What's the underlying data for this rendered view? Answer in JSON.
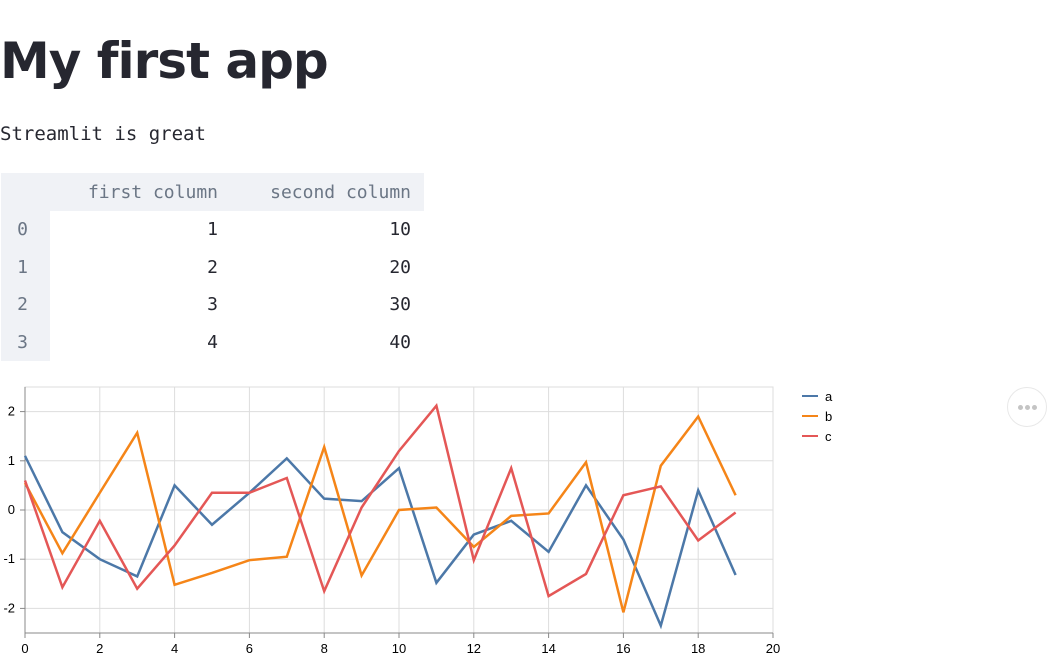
{
  "page": {
    "title": "My first app",
    "subtitle": "Streamlit is great"
  },
  "table": {
    "columns": [
      "first column",
      "second column"
    ],
    "rows": [
      {
        "index": "0",
        "first": "1",
        "second": "10"
      },
      {
        "index": "1",
        "first": "2",
        "second": "20"
      },
      {
        "index": "2",
        "first": "3",
        "second": "30"
      },
      {
        "index": "3",
        "first": "4",
        "second": "40"
      }
    ]
  },
  "chart_data": {
    "type": "line",
    "x": [
      0,
      1,
      2,
      3,
      4,
      5,
      6,
      7,
      8,
      9,
      10,
      11,
      12,
      13,
      14,
      15,
      16,
      17,
      18,
      19
    ],
    "series": [
      {
        "name": "a",
        "color": "#4c78a8",
        "values": [
          1.1,
          -0.45,
          -1.0,
          -1.35,
          0.5,
          -0.3,
          0.35,
          1.05,
          0.23,
          0.18,
          0.85,
          -1.48,
          -0.5,
          -0.22,
          -0.85,
          0.5,
          -0.6,
          -2.35,
          0.4,
          -1.32
        ]
      },
      {
        "name": "b",
        "color": "#f58518",
        "values": [
          0.55,
          -0.88,
          0.35,
          1.57,
          -1.52,
          -1.28,
          -1.02,
          -0.95,
          1.28,
          -1.33,
          0.0,
          0.05,
          -0.75,
          -0.12,
          -0.07,
          0.97,
          -2.08,
          0.9,
          1.9,
          0.3
        ]
      },
      {
        "name": "c",
        "color": "#e45756",
        "values": [
          0.6,
          -1.57,
          -0.22,
          -1.6,
          -0.72,
          0.35,
          0.35,
          0.65,
          -1.65,
          0.05,
          1.2,
          2.12,
          -1.02,
          0.85,
          -1.75,
          -1.3,
          0.3,
          0.48,
          -0.62,
          -0.05
        ]
      }
    ],
    "xlim": [
      0,
      20
    ],
    "ylim": [
      -2.5,
      2.5
    ],
    "xticks": [
      0,
      2,
      4,
      6,
      8,
      10,
      12,
      14,
      16,
      18,
      20
    ],
    "yticks": [
      -2,
      -1,
      0,
      1,
      2
    ],
    "grid": true,
    "legend": "top-right"
  },
  "icons": {
    "more_menu": "more-horizontal-icon"
  }
}
